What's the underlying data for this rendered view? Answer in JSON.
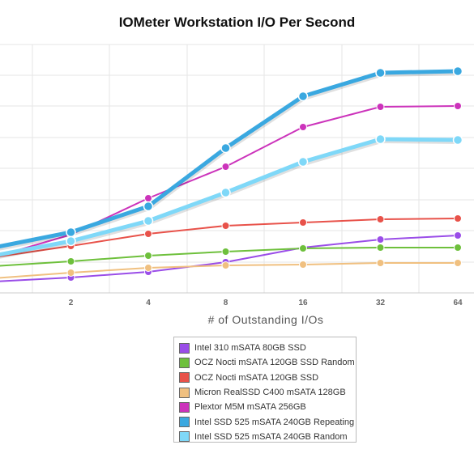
{
  "chart_data": {
    "type": "line",
    "title": "IOMeter Workstation I/O Per Second",
    "xlabel": "# of Outstanding I/Os",
    "ylabel": "",
    "x": [
      1,
      2,
      4,
      8,
      16,
      32,
      64
    ],
    "x_tick_labels": [
      "",
      "2",
      "4",
      "8",
      "16",
      "32",
      "64"
    ],
    "x_scale": "log2",
    "y_ticks_shown": false,
    "grid": true,
    "legend_position": "bottom-center",
    "series": [
      {
        "name": "Intel 310 mSATA 80GB SSD",
        "color": "#9a4de8",
        "values": [
          348,
          343,
          336,
          324,
          306,
          296,
          291
        ]
      },
      {
        "name": "OCZ Nocti mSATA 120GB SSD Random",
        "color": "#6ec03c",
        "values": [
          329,
          323,
          316,
          311,
          307,
          306,
          306
        ]
      },
      {
        "name": "OCZ Nocti mSATA 120GB SSD",
        "color": "#e8524a",
        "values": [
          318,
          304,
          289,
          279,
          275,
          271,
          270
        ]
      },
      {
        "name": "Micron RealSSD C400 mSATA 128GB",
        "color": "#f0c080",
        "values": [
          344,
          337,
          331,
          328,
          327,
          325,
          325
        ]
      },
      {
        "name": "Plextor M5M mSATA 256GB",
        "color": "#cc33bb",
        "values": [
          318,
          290,
          245,
          206,
          157,
          132,
          131
        ]
      },
      {
        "name": "Intel SSD 525 mSATA 240GB Repeating",
        "color": "#3aa8e0",
        "values": [
          306,
          287,
          255,
          183,
          119,
          90,
          88
        ]
      },
      {
        "name": "Intel SSD 525 mSATA 240GB Random",
        "color": "#7fd8f8",
        "values": [
          316,
          298,
          273,
          238,
          200,
          172,
          173
        ]
      }
    ]
  }
}
